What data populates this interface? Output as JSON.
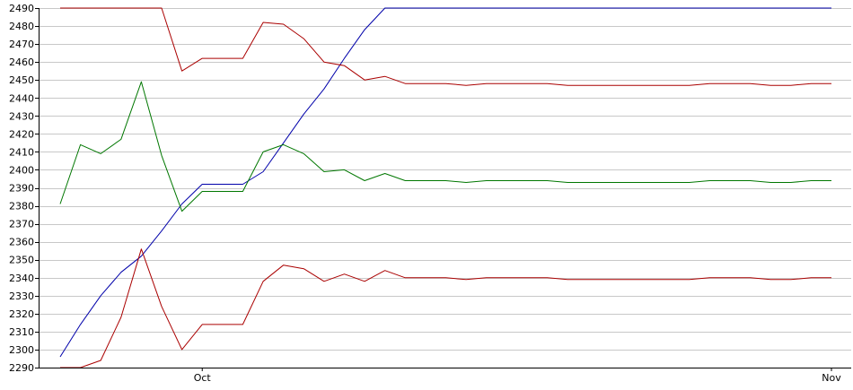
{
  "chart_data": {
    "type": "line",
    "title": "",
    "xlabel": "",
    "ylabel": "",
    "ylim": [
      2290,
      2490
    ],
    "yticks": [
      2290,
      2300,
      2310,
      2320,
      2330,
      2340,
      2350,
      2360,
      2370,
      2380,
      2390,
      2400,
      2410,
      2420,
      2430,
      2440,
      2450,
      2460,
      2470,
      2480,
      2490
    ],
    "ytick_labels": [
      "2290",
      "2300",
      "2310",
      "2320",
      "2330",
      "2340",
      "2350",
      "2360",
      "2370",
      "2380",
      "2390",
      "2400",
      "2410",
      "2420",
      "2430",
      "2440",
      "2450",
      "2460",
      "2470",
      "2480",
      "2490"
    ],
    "xlim": [
      0,
      38
    ],
    "xticks": [
      {
        "x": 7,
        "label": "Oct"
      },
      {
        "x": 38,
        "label": "Nov"
      }
    ],
    "grid": true,
    "legend": "none",
    "x": [
      0,
      1,
      2,
      3,
      4,
      5,
      6,
      7,
      8,
      9,
      10,
      11,
      12,
      13,
      14,
      15,
      16,
      17,
      18,
      19,
      20,
      21,
      22,
      23,
      24,
      25,
      26,
      27,
      28,
      29,
      30,
      31,
      32,
      33,
      34,
      35,
      36,
      37,
      38
    ],
    "series": [
      {
        "color": "#0000aa",
        "values": [
          2296,
          2314,
          2330,
          2343,
          2352,
          2366,
          2381,
          2392,
          2392,
          2392,
          2399,
          2415,
          2431,
          2445,
          2462,
          2478,
          2490,
          2490,
          2490,
          2490,
          2490,
          2490,
          2490,
          2490,
          2490,
          2490,
          2490,
          2490,
          2490,
          2490,
          2490,
          2490,
          2490,
          2490,
          2490,
          2490,
          2490,
          2490,
          2490
        ]
      },
      {
        "color": "#aa0000",
        "values": [
          2490,
          2490,
          2490,
          2490,
          2490,
          2490,
          2455,
          2462,
          2462,
          2462,
          2482,
          2481,
          2473,
          2460,
          2458,
          2450,
          2452,
          2448,
          2448,
          2448,
          2447,
          2448,
          2448,
          2448,
          2448,
          2447,
          2447,
          2447,
          2447,
          2447,
          2447,
          2447,
          2448,
          2448,
          2448,
          2447,
          2447,
          2448,
          2448
        ]
      },
      {
        "color": "#007700",
        "values": [
          2381,
          2414,
          2409,
          2417,
          2449,
          2408,
          2377,
          2388,
          2388,
          2388,
          2410,
          2414,
          2409,
          2399,
          2400,
          2394,
          2398,
          2394,
          2394,
          2394,
          2393,
          2394,
          2394,
          2394,
          2394,
          2393,
          2393,
          2393,
          2393,
          2393,
          2393,
          2393,
          2394,
          2394,
          2394,
          2393,
          2393,
          2394,
          2394
        ]
      },
      {
        "color": "#aa0000",
        "values": [
          2290,
          2290,
          2294,
          2318,
          2356,
          2324,
          2300,
          2314,
          2314,
          2314,
          2338,
          2347,
          2345,
          2338,
          2342,
          2338,
          2344,
          2340,
          2340,
          2340,
          2339,
          2340,
          2340,
          2340,
          2340,
          2339,
          2339,
          2339,
          2339,
          2339,
          2339,
          2339,
          2340,
          2340,
          2340,
          2339,
          2339,
          2340,
          2340
        ]
      }
    ]
  },
  "colors": {
    "grid": "#c8c8c8",
    "axis": "#000000"
  }
}
